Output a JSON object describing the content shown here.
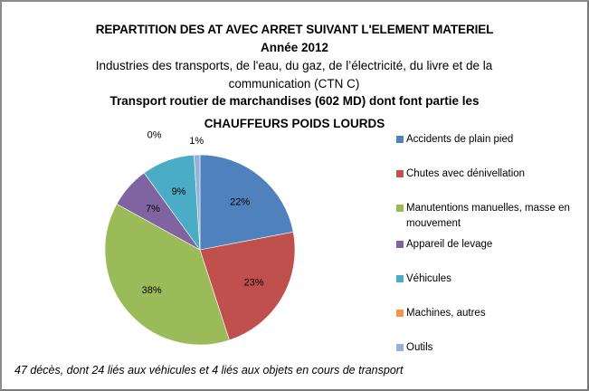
{
  "chart_data": {
    "type": "pie",
    "title": "REPARTITION DES AT AVEC ARRET SUIVANT L'ELEMENT MATERIEL",
    "subtitle_year": "Année 2012",
    "subtitle_sector": "Industries des transports,  de l'eau, du gaz, de l’électricité, du livre et de la communication (CTN C)",
    "subtitle_activity": "Transport routier de marchandises (602 MD)  dont font partie  les",
    "subtitle_drivers": "CHAUFFEURS POIDS LOURDS",
    "start_angle_deg": 0,
    "direction": "clockwise",
    "legend_position": "right",
    "slices": [
      {
        "label": "Accidents de plain pied",
        "value": 22,
        "data_label": "22%",
        "color": "#4F81BD"
      },
      {
        "label": "Chutes avec dénivellation",
        "value": 23,
        "data_label": "23%",
        "color": "#C0504D"
      },
      {
        "label": "Manutentions manuelles, masse en mouvement",
        "value": 38,
        "data_label": "38%",
        "color": "#9BBB59"
      },
      {
        "label": "Appareil de levage",
        "value": 7,
        "data_label": "7%",
        "color": "#8064A2"
      },
      {
        "label": "Véhicules",
        "value": 9,
        "data_label": "9%",
        "color": "#4BACC6"
      },
      {
        "label": "Machines, autres",
        "value": 0,
        "data_label": "0%",
        "color": "#F79646"
      },
      {
        "label": "Outils",
        "value": 1,
        "data_label": "1%",
        "color": "#95B3D7"
      }
    ],
    "footnote": "47 décès, dont 24 liés aux véhicules et 4 liés aux objets en cours de transport"
  }
}
